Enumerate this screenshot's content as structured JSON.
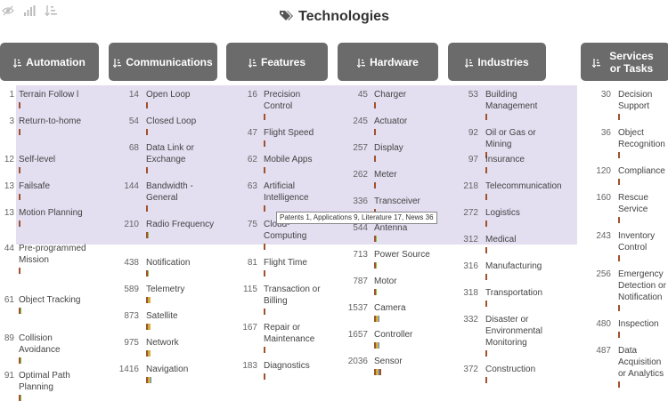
{
  "title": "Technologies",
  "tooltip": "Patents 1, Applications 9, Literature 17, News 36",
  "icons": {
    "eye": "eye-slash-icon",
    "bars": "bar-chart-icon",
    "sort": "sort-icon",
    "tag": "tag-icon"
  },
  "colors": {
    "header_bg": "#6b6b6b",
    "highlight": "#e3def0",
    "bar": [
      "#a0522d",
      "#8bc34a",
      "#f2a33a",
      "#4a8fd0"
    ]
  },
  "columns": [
    {
      "name": "Automation",
      "items": [
        {
          "n": "1",
          "label": "Terrain Follow l",
          "bar": [
            1
          ]
        },
        {
          "n": "3",
          "label": "Return-to-home",
          "bar": [
            1
          ]
        },
        {
          "n": "12",
          "label": "Self-level",
          "bar": [
            1
          ]
        },
        {
          "n": "13",
          "label": "Failsafe",
          "bar": [
            1
          ]
        },
        {
          "n": "13",
          "label": "Motion Planning",
          "bar": [
            1
          ]
        },
        {
          "n": "44",
          "label": "Pre-programmed Mission",
          "bar": [
            1
          ]
        },
        {
          "n": "61",
          "label": "Object Tracking",
          "bar": [
            1,
            1
          ]
        },
        {
          "n": "89",
          "label": "Collision Avoidance",
          "bar": [
            1,
            1
          ]
        },
        {
          "n": "91",
          "label": "Optimal Path Planning",
          "bar": [
            1,
            1
          ]
        }
      ]
    },
    {
      "name": "Communications",
      "items": [
        {
          "n": "14",
          "label": "Open Loop",
          "bar": [
            1
          ]
        },
        {
          "n": "54",
          "label": "Closed Loop",
          "bar": [
            1
          ]
        },
        {
          "n": "68",
          "label": "Data Link or Exchange",
          "bar": [
            1
          ]
        },
        {
          "n": "144",
          "label": "Bandwidth - General",
          "bar": [
            1
          ]
        },
        {
          "n": "210",
          "label": "Radio Frequency",
          "bar": [
            1,
            1
          ]
        },
        {
          "n": "438",
          "label": "Notification",
          "bar": [
            1,
            1
          ]
        },
        {
          "n": "589",
          "label": "Telemetry",
          "bar": [
            1,
            1,
            1
          ]
        },
        {
          "n": "873",
          "label": "Satellite",
          "bar": [
            1,
            1,
            1
          ]
        },
        {
          "n": "975",
          "label": "Network",
          "bar": [
            1,
            1,
            1
          ]
        },
        {
          "n": "1416",
          "label": "Navigation",
          "bar": [
            1,
            1,
            1,
            1
          ]
        }
      ]
    },
    {
      "name": "Features",
      "items": [
        {
          "n": "16",
          "label": "Precision Control",
          "bar": [
            1
          ]
        },
        {
          "n": "47",
          "label": "Flight Speed",
          "bar": [
            1
          ]
        },
        {
          "n": "62",
          "label": "Mobile Apps",
          "bar": [
            1
          ]
        },
        {
          "n": "63",
          "label": "Artificial Intelligence",
          "bar": [
            1
          ]
        },
        {
          "n": "75",
          "label": "Cloud-Computing",
          "bar": [
            1
          ]
        },
        {
          "n": "81",
          "label": "Flight Time",
          "bar": [
            1
          ]
        },
        {
          "n": "115",
          "label": "Transaction or Billing",
          "bar": [
            1
          ]
        },
        {
          "n": "167",
          "label": "Repair or Maintenance",
          "bar": [
            1
          ]
        },
        {
          "n": "183",
          "label": "Diagnostics",
          "bar": [
            1
          ]
        }
      ]
    },
    {
      "name": "Hardware",
      "items": [
        {
          "n": "45",
          "label": "Charger",
          "bar": [
            1
          ]
        },
        {
          "n": "245",
          "label": "Actuator",
          "bar": [
            1
          ]
        },
        {
          "n": "257",
          "label": "Display",
          "bar": [
            1
          ]
        },
        {
          "n": "262",
          "label": "Meter",
          "bar": [
            1
          ]
        },
        {
          "n": "336",
          "label": "Transceiver",
          "bar": [
            1
          ]
        },
        {
          "n": "544",
          "label": "Antenna",
          "bar": [
            1,
            1
          ]
        },
        {
          "n": "713",
          "label": "Power Source",
          "bar": [
            1,
            1
          ]
        },
        {
          "n": "787",
          "label": "Motor",
          "bar": [
            1,
            1
          ]
        },
        {
          "n": "1537",
          "label": "Camera",
          "bar": [
            1,
            1,
            1,
            1
          ]
        },
        {
          "n": "1657",
          "label": "Controller",
          "bar": [
            1,
            1,
            1,
            1
          ]
        },
        {
          "n": "2036",
          "label": "Sensor",
          "bar": [
            1,
            1,
            1,
            1,
            1
          ]
        }
      ]
    },
    {
      "name": "Industries",
      "items": [
        {
          "n": "53",
          "label": "Building Management",
          "bar": [
            1
          ]
        },
        {
          "n": "92",
          "label": "Oil or Gas or Mining",
          "bar": [
            1
          ]
        },
        {
          "n": "97",
          "label": "Insurance",
          "bar": [
            1
          ]
        },
        {
          "n": "218",
          "label": "Telecommunication",
          "bar": [
            1
          ]
        },
        {
          "n": "272",
          "label": "Logistics",
          "bar": [
            1
          ]
        },
        {
          "n": "312",
          "label": "Medical",
          "bar": [
            1
          ]
        },
        {
          "n": "316",
          "label": "Manufacturing",
          "bar": [
            1
          ]
        },
        {
          "n": "318",
          "label": "Transportation",
          "bar": [
            1
          ]
        },
        {
          "n": "332",
          "label": "Disaster or Environmental Monitoring",
          "bar": [
            1
          ]
        },
        {
          "n": "372",
          "label": "Construction",
          "bar": [
            1
          ]
        }
      ]
    },
    {
      "name": "Services or Tasks",
      "items": [
        {
          "n": "30",
          "label": "Decision Support",
          "bar": [
            1
          ]
        },
        {
          "n": "36",
          "label": "Object Recognition",
          "bar": [
            1
          ]
        },
        {
          "n": "120",
          "label": "Compliance",
          "bar": [
            1
          ]
        },
        {
          "n": "160",
          "label": "Rescue Service",
          "bar": [
            1
          ]
        },
        {
          "n": "243",
          "label": "Inventory Control",
          "bar": [
            1
          ]
        },
        {
          "n": "256",
          "label": "Emergency Detection or Notification",
          "bar": [
            1
          ]
        },
        {
          "n": "480",
          "label": "Inspection",
          "bar": [
            1
          ]
        },
        {
          "n": "487",
          "label": "Data Acquisition or Analytics",
          "bar": [
            1
          ]
        }
      ]
    }
  ]
}
